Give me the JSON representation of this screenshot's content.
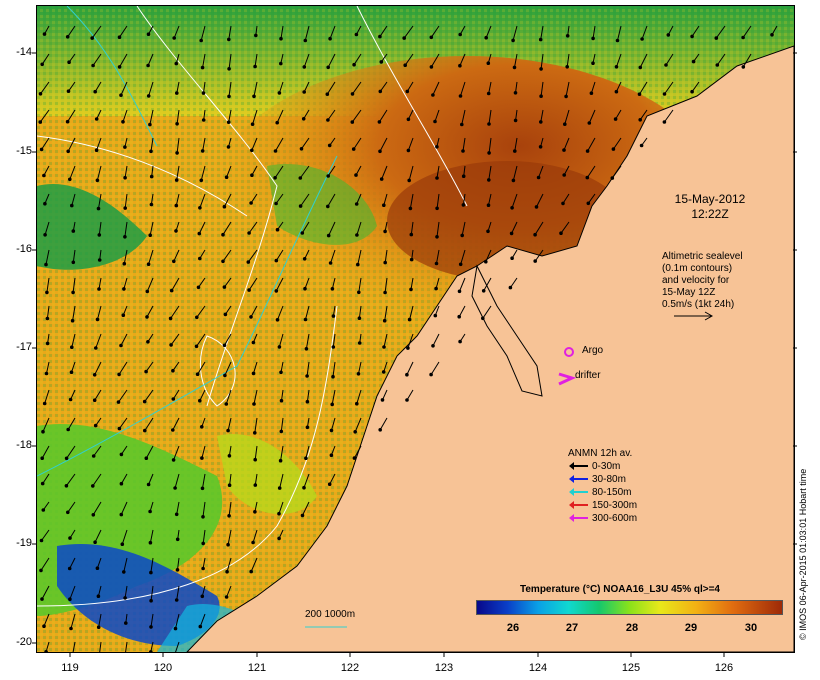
{
  "map": {
    "y_labels": [
      "-14",
      "-15",
      "-16",
      "-17",
      "-18",
      "-19",
      "-20"
    ],
    "x_labels": [
      "119",
      "120",
      "121",
      "122",
      "123",
      "124",
      "125",
      "126"
    ],
    "date_line1": "15-May-2012",
    "date_line2": "12:22Z",
    "altimetric": [
      "Altimetric sealevel",
      "(0.1m contours)",
      "and velocity for",
      "15-May 12Z",
      "0.5m/s (1kt 24h)"
    ],
    "argo_label": "Argo",
    "drifter_label": "drifter",
    "depth_label": "200  1000m",
    "credit": "© IMOS 06-Apr-2015 01:03:01 Hobart time"
  },
  "legend": {
    "title": "ANMN 12h av.",
    "items": [
      {
        "label": "0-30m",
        "color": "#000000"
      },
      {
        "label": "30-80m",
        "color": "#1020e0"
      },
      {
        "label": "80-150m",
        "color": "#20d0d0"
      },
      {
        "label": "150-300m",
        "color": "#e02020"
      },
      {
        "label": "300-600m",
        "color": "#e020e0"
      }
    ]
  },
  "colorbar": {
    "title": "Temperature (°C) NOAA16_L3U 45% ql>=4",
    "ticks": [
      "26",
      "27",
      "28",
      "29",
      "30"
    ]
  },
  "colors": {
    "land": "#f7c396",
    "argo": "#e020e0",
    "drifter": "#e020e0"
  }
}
